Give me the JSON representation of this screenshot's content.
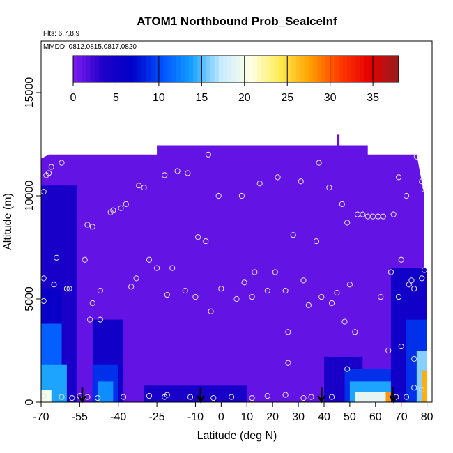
{
  "chart_data": {
    "type": "heatmap",
    "title": "ATOM1 Northbound Prob_SeaIceInf",
    "annotations": [
      "Flts: 6,7,8,9",
      "MMDD: 0812,0815,0817,0820"
    ],
    "xlabel": "Latitude (deg N)",
    "ylabel": "Altitude (m)",
    "xlim": [
      -70,
      82
    ],
    "ylim": [
      0,
      17500
    ],
    "x_ticks": [
      -70,
      -55,
      -40,
      -25,
      -10,
      0,
      10,
      20,
      30,
      40,
      50,
      60,
      70,
      80
    ],
    "x_tick_labels": [
      "-70",
      "-55",
      "-40",
      "-25",
      "-10",
      "0",
      "10",
      "20",
      "30",
      "40",
      "50",
      "60",
      "70",
      "80"
    ],
    "y_ticks": [
      0,
      5000,
      10000,
      15000
    ],
    "y_tick_labels": [
      "0",
      "5000",
      "10000",
      "15000"
    ],
    "colorbar": {
      "range": [
        0,
        38
      ],
      "ticks": [
        0,
        5,
        10,
        15,
        20,
        25,
        30,
        35
      ],
      "tick_labels": [
        "0",
        "5",
        "10",
        "15",
        "20",
        "25",
        "30",
        "35"
      ],
      "colors": [
        "#7f1cf0",
        "#1e00c8",
        "#0000c8",
        "#0050ff",
        "#14a0ff",
        "#c8ebff",
        "#ffffe6",
        "#ffeb50",
        "#ffa000",
        "#ff3c00",
        "#e60000",
        "#961e1e"
      ]
    },
    "field_top": [
      {
        "lat": -70,
        "alt": 11800
      },
      {
        "lat": -67,
        "alt": 12000
      },
      {
        "lat": -25,
        "alt": 12000
      },
      {
        "lat": -25,
        "alt": 12450
      },
      {
        "lat": 45,
        "alt": 12450
      },
      {
        "lat": 45,
        "alt": 13000
      },
      {
        "lat": 46,
        "alt": 13000
      },
      {
        "lat": 46,
        "alt": 12450
      },
      {
        "lat": 57,
        "alt": 12450
      },
      {
        "lat": 57,
        "alt": 12000
      },
      {
        "lat": 76,
        "alt": 12000
      },
      {
        "lat": 79,
        "alt": 10000
      },
      {
        "lat": 79,
        "alt": 6500
      },
      {
        "lat": 80,
        "alt": 6500
      },
      {
        "lat": 80,
        "alt": 0
      }
    ],
    "field_values": [
      {
        "lat_min": -70,
        "lat_max": 80,
        "alt_min": 0,
        "alt_max": 13000,
        "value": 1
      },
      {
        "lat_min": -70,
        "lat_max": -56,
        "alt_min": 0,
        "alt_max": 10500,
        "value": 4
      },
      {
        "lat_min": -70,
        "lat_max": -62,
        "alt_min": 0,
        "alt_max": 5500,
        "value": 6
      },
      {
        "lat_min": -70,
        "lat_max": -62,
        "alt_min": 0,
        "alt_max": 3800,
        "value": 11
      },
      {
        "lat_min": -70,
        "lat_max": -60,
        "alt_min": 0,
        "alt_max": 1800,
        "value": 14
      },
      {
        "lat_min": -70,
        "lat_max": -66,
        "alt_min": 0,
        "alt_max": 600,
        "value": 20
      },
      {
        "lat_min": -50,
        "lat_max": -38,
        "alt_min": 0,
        "alt_max": 4000,
        "value": 5
      },
      {
        "lat_min": -50,
        "lat_max": -40,
        "alt_min": 0,
        "alt_max": 1800,
        "value": 9
      },
      {
        "lat_min": -48,
        "lat_max": -42,
        "alt_min": 0,
        "alt_max": 1000,
        "value": 13
      },
      {
        "lat_min": -30,
        "lat_max": 10,
        "alt_min": 0,
        "alt_max": 800,
        "value": 4
      },
      {
        "lat_min": 40,
        "lat_max": 55,
        "alt_min": 0,
        "alt_max": 2200,
        "value": 4
      },
      {
        "lat_min": 48,
        "lat_max": 70,
        "alt_min": 0,
        "alt_max": 1600,
        "value": 9
      },
      {
        "lat_min": 50,
        "lat_max": 66,
        "alt_min": 0,
        "alt_max": 1000,
        "value": 14
      },
      {
        "lat_min": 52,
        "lat_max": 64,
        "alt_min": 0,
        "alt_max": 500,
        "value": 19
      },
      {
        "lat_min": 64,
        "lat_max": 72,
        "alt_min": 0,
        "alt_max": 500,
        "value": 28
      },
      {
        "lat_min": 66,
        "lat_max": 80,
        "alt_min": 0,
        "alt_max": 6500,
        "value": 5
      },
      {
        "lat_min": 72,
        "lat_max": 80,
        "alt_min": 0,
        "alt_max": 4000,
        "value": 9
      },
      {
        "lat_min": 76,
        "lat_max": 80,
        "alt_min": 0,
        "alt_max": 2500,
        "value": 16
      },
      {
        "lat_min": 78,
        "lat_max": 80,
        "alt_min": 0,
        "alt_max": 1500,
        "value": 27
      }
    ],
    "samples": [
      {
        "lat": -69,
        "alt": 10200
      },
      {
        "lat": -68,
        "alt": 11000
      },
      {
        "lat": -67,
        "alt": 11100
      },
      {
        "lat": -66,
        "alt": 11400
      },
      {
        "lat": -62,
        "alt": 11600
      },
      {
        "lat": -69,
        "alt": 6000
      },
      {
        "lat": -69,
        "alt": 4900
      },
      {
        "lat": -64,
        "alt": 7000
      },
      {
        "lat": -65,
        "alt": 5700
      },
      {
        "lat": -60,
        "alt": 5500
      },
      {
        "lat": -59,
        "alt": 5500
      },
      {
        "lat": -53,
        "alt": 6900
      },
      {
        "lat": -52,
        "alt": 8600
      },
      {
        "lat": -50,
        "alt": 8500
      },
      {
        "lat": -47,
        "alt": 5400
      },
      {
        "lat": -50,
        "alt": 4800
      },
      {
        "lat": -51,
        "alt": 4000
      },
      {
        "lat": -47,
        "alt": 4000
      },
      {
        "lat": -43,
        "alt": 9200
      },
      {
        "lat": -42,
        "alt": 9300
      },
      {
        "lat": -39,
        "alt": 9400
      },
      {
        "lat": -37,
        "alt": 9600
      },
      {
        "lat": -32,
        "alt": 10500
      },
      {
        "lat": -30,
        "alt": 10400
      },
      {
        "lat": -22,
        "alt": 11000
      },
      {
        "lat": -17,
        "alt": 11200
      },
      {
        "lat": -13,
        "alt": 11100
      },
      {
        "lat": -5,
        "alt": 12000
      },
      {
        "lat": -1,
        "alt": 10000
      },
      {
        "lat": 8,
        "alt": 10000
      },
      {
        "lat": 15,
        "alt": 10600
      },
      {
        "lat": 22,
        "alt": 10900
      },
      {
        "lat": 31,
        "alt": 10700
      },
      {
        "lat": 38,
        "alt": 11600
      },
      {
        "lat": 42,
        "alt": 10400
      },
      {
        "lat": 47,
        "alt": 9600
      },
      {
        "lat": 49,
        "alt": 8700
      },
      {
        "lat": 53,
        "alt": 9100
      },
      {
        "lat": 55,
        "alt": 9100
      },
      {
        "lat": 57,
        "alt": 9000
      },
      {
        "lat": 59,
        "alt": 9000
      },
      {
        "lat": 61,
        "alt": 9000
      },
      {
        "lat": 63,
        "alt": 9000
      },
      {
        "lat": 67,
        "alt": 9100
      },
      {
        "lat": 69,
        "alt": 10900
      },
      {
        "lat": 72,
        "alt": 10000
      },
      {
        "lat": 76,
        "alt": 11900
      },
      {
        "lat": 78,
        "alt": 10700
      },
      {
        "lat": 79,
        "alt": 10300
      },
      {
        "lat": -35,
        "alt": 5600
      },
      {
        "lat": -33,
        "alt": 6000
      },
      {
        "lat": -28,
        "alt": 6900
      },
      {
        "lat": -25,
        "alt": 6500
      },
      {
        "lat": -21,
        "alt": 5200
      },
      {
        "lat": -19,
        "alt": 6500
      },
      {
        "lat": -14,
        "alt": 5400
      },
      {
        "lat": -10,
        "alt": 5100
      },
      {
        "lat": -9,
        "alt": 8000
      },
      {
        "lat": -6,
        "alt": 7800
      },
      {
        "lat": -4,
        "alt": 4400
      },
      {
        "lat": 0,
        "alt": 5500
      },
      {
        "lat": 6,
        "alt": 5000
      },
      {
        "lat": 9,
        "alt": 5800
      },
      {
        "lat": 12,
        "alt": 5100
      },
      {
        "lat": 13,
        "alt": 6300
      },
      {
        "lat": 18,
        "alt": 5400
      },
      {
        "lat": 21,
        "alt": 6300
      },
      {
        "lat": 25,
        "alt": 5400
      },
      {
        "lat": 28,
        "alt": 8100
      },
      {
        "lat": 32,
        "alt": 5900
      },
      {
        "lat": 34,
        "alt": 4700
      },
      {
        "lat": 37,
        "alt": 7800
      },
      {
        "lat": 39,
        "alt": 5100
      },
      {
        "lat": 43,
        "alt": 4800
      },
      {
        "lat": 45,
        "alt": 5300
      },
      {
        "lat": 48,
        "alt": 3900
      },
      {
        "lat": 50,
        "alt": 5700
      },
      {
        "lat": 52,
        "alt": 3400
      },
      {
        "lat": 26,
        "alt": 3400
      },
      {
        "lat": 26,
        "alt": 1900
      },
      {
        "lat": 49,
        "alt": 1600
      },
      {
        "lat": 62,
        "alt": 5100
      },
      {
        "lat": 66,
        "alt": 6300
      },
      {
        "lat": 69,
        "alt": 5100
      },
      {
        "lat": 70,
        "alt": 6900
      },
      {
        "lat": 73,
        "alt": 5700
      },
      {
        "lat": 74,
        "alt": 5900
      },
      {
        "lat": 75,
        "alt": 5500
      },
      {
        "lat": 75,
        "alt": 2100
      },
      {
        "lat": 70,
        "alt": 2700
      },
      {
        "lat": 65,
        "alt": 2500
      },
      {
        "lat": 78,
        "alt": 6000
      },
      {
        "lat": 79,
        "alt": 6400
      },
      {
        "lat": 78,
        "alt": 600
      },
      {
        "lat": 75,
        "alt": 700
      },
      {
        "lat": -69,
        "alt": 300
      },
      {
        "lat": -62,
        "alt": 250
      },
      {
        "lat": -58,
        "alt": 200
      },
      {
        "lat": -55,
        "alt": 300
      },
      {
        "lat": -52,
        "alt": 250
      },
      {
        "lat": -48,
        "alt": 200
      },
      {
        "lat": -38,
        "alt": 250
      },
      {
        "lat": -28,
        "alt": 300
      },
      {
        "lat": -22,
        "alt": 250
      },
      {
        "lat": -21,
        "alt": 350
      },
      {
        "lat": -12,
        "alt": 250
      },
      {
        "lat": -3,
        "alt": 200
      },
      {
        "lat": 4,
        "alt": 250
      },
      {
        "lat": 12,
        "alt": 200
      },
      {
        "lat": 18,
        "alt": 300
      },
      {
        "lat": 25,
        "alt": 350
      },
      {
        "lat": 32,
        "alt": 200
      },
      {
        "lat": 35,
        "alt": 250
      },
      {
        "lat": 43,
        "alt": 250
      },
      {
        "lat": 68,
        "alt": 250
      },
      {
        "lat": 72,
        "alt": 250
      }
    ],
    "arrows_lat": [
      -54,
      -8,
      39,
      67
    ]
  }
}
